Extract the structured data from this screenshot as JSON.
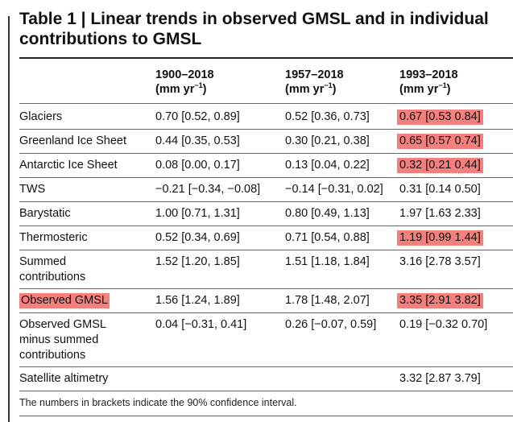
{
  "title": "Table 1 | Linear trends in observed GMSL and in individual contributions to GMSL",
  "headers": [
    {
      "period": "1900–2018",
      "unit": "(mm yr",
      "sup": "−1",
      "close": ")"
    },
    {
      "period": "1957–2018",
      "unit": "(mm yr",
      "sup": "−1",
      "close": ")"
    },
    {
      "period": "1993–2018",
      "unit": "(mm yr",
      "sup": "−1",
      "close": ")"
    }
  ],
  "rows": [
    {
      "label": "Glaciers",
      "c1": "0.70 [0.52, 0.89]",
      "c2": "0.52 [0.36, 0.73]",
      "c3": "0.67 [0.53 0.84]"
    },
    {
      "label": "Greenland Ice Sheet",
      "c1": "0.44 [0.35, 0.53]",
      "c2": "0.30 [0.21, 0.38]",
      "c3": "0.65 [0.57 0.74]"
    },
    {
      "label": "Antarctic Ice Sheet",
      "c1": "0.08 [0.00, 0.17]",
      "c2": "0.13 [0.04, 0.22]",
      "c3": "0.32 [0.21 0.44]"
    },
    {
      "label": "TWS",
      "c1": "−0.21 [−0.34, −0.08]",
      "c2": "−0.14 [−0.31, 0.02]",
      "c3": "0.31 [0.14 0.50]"
    },
    {
      "label": "Barystatic",
      "c1": "1.00 [0.71, 1.31]",
      "c2": "0.80 [0.49, 1.13]",
      "c3": "1.97 [1.63 2.33]"
    },
    {
      "label": "Thermosteric",
      "c1": "0.52 [0.34, 0.69]",
      "c2": "0.71 [0.54, 0.88]",
      "c3": "1.19 [0.99 1.44]"
    },
    {
      "label1": "Summed",
      "label2": "contributions",
      "c1": "1.52 [1.20, 1.85]",
      "c2": "1.51 [1.18, 1.84]",
      "c3": "3.16 [2.78 3.57]"
    },
    {
      "label": "Observed GMSL",
      "c1": "1.56 [1.24, 1.89]",
      "c2": "1.78 [1.48, 2.07]",
      "c3": "3.35 [2.91 3.82]"
    },
    {
      "label1": "Observed GMSL",
      "label2": "minus summed",
      "label3": "contributions",
      "c1": "0.04 [−0.31, 0.41]",
      "c2": "0.26 [−0.07, 0.59]",
      "c3": "0.19 [−0.32 0.70]"
    },
    {
      "label": "Satellite altimetry",
      "c3": "3.32 [2.87 3.79]"
    }
  ],
  "footnote": "The numbers in brackets indicate the 90% confidence interval.",
  "highlight_color": "#f4807e"
}
